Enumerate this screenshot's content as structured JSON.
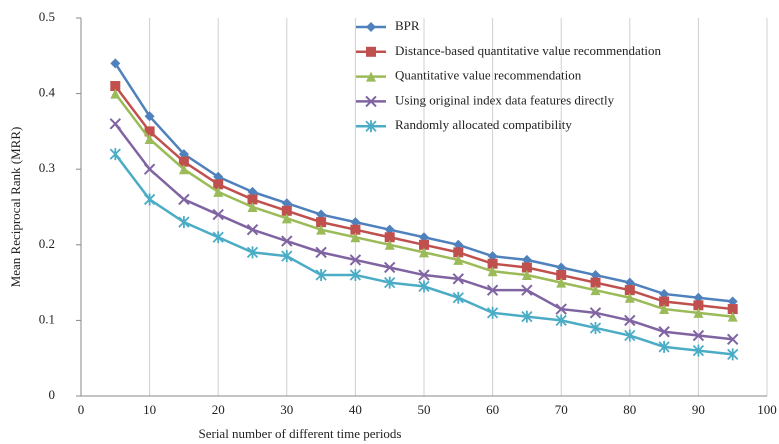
{
  "chart_data": {
    "type": "line",
    "x_label": "Serial number of different time periods",
    "y_label": "Mean Reciprocal Rank (MRR)",
    "x": [
      5,
      10,
      15,
      20,
      25,
      30,
      35,
      40,
      45,
      50,
      55,
      60,
      65,
      70,
      75,
      80,
      85,
      90,
      95
    ],
    "series": [
      {
        "name": "BPR",
        "color": "#4f81bd",
        "marker": "diamond",
        "values": [
          0.44,
          0.37,
          0.32,
          0.29,
          0.27,
          0.255,
          0.24,
          0.23,
          0.22,
          0.21,
          0.2,
          0.185,
          0.18,
          0.17,
          0.16,
          0.15,
          0.135,
          0.13,
          0.125
        ]
      },
      {
        "name": "Distance-based quantitative value recommendation",
        "color": "#c0504d",
        "marker": "square",
        "values": [
          0.41,
          0.35,
          0.31,
          0.28,
          0.26,
          0.245,
          0.23,
          0.22,
          0.21,
          0.2,
          0.19,
          0.175,
          0.17,
          0.16,
          0.15,
          0.14,
          0.125,
          0.12,
          0.115
        ]
      },
      {
        "name": "Quantitative value recommendation",
        "color": "#9bbb59",
        "marker": "triangle",
        "values": [
          0.4,
          0.34,
          0.3,
          0.27,
          0.25,
          0.235,
          0.22,
          0.21,
          0.2,
          0.19,
          0.18,
          0.165,
          0.16,
          0.15,
          0.14,
          0.13,
          0.115,
          0.11,
          0.105
        ]
      },
      {
        "name": "Using original index data features directly",
        "color": "#8064a2",
        "marker": "x",
        "values": [
          0.36,
          0.3,
          0.26,
          0.24,
          0.22,
          0.205,
          0.19,
          0.18,
          0.17,
          0.16,
          0.155,
          0.14,
          0.14,
          0.115,
          0.11,
          0.1,
          0.085,
          0.08,
          0.075
        ]
      },
      {
        "name": "Randomly allocated compatibility",
        "color": "#4bacc6",
        "marker": "asterisk",
        "values": [
          0.32,
          0.26,
          0.23,
          0.21,
          0.19,
          0.185,
          0.16,
          0.16,
          0.15,
          0.145,
          0.13,
          0.11,
          0.105,
          0.1,
          0.09,
          0.08,
          0.065,
          0.06,
          0.055
        ]
      }
    ],
    "xlim": [
      0,
      100
    ],
    "xticks": [
      0,
      10,
      20,
      30,
      40,
      50,
      60,
      70,
      80,
      90,
      100
    ],
    "ylim": [
      0,
      0.5
    ],
    "yticks": [
      0,
      0.1,
      0.2,
      0.3,
      0.4,
      0.5
    ],
    "grid": "x",
    "legend": "top"
  }
}
